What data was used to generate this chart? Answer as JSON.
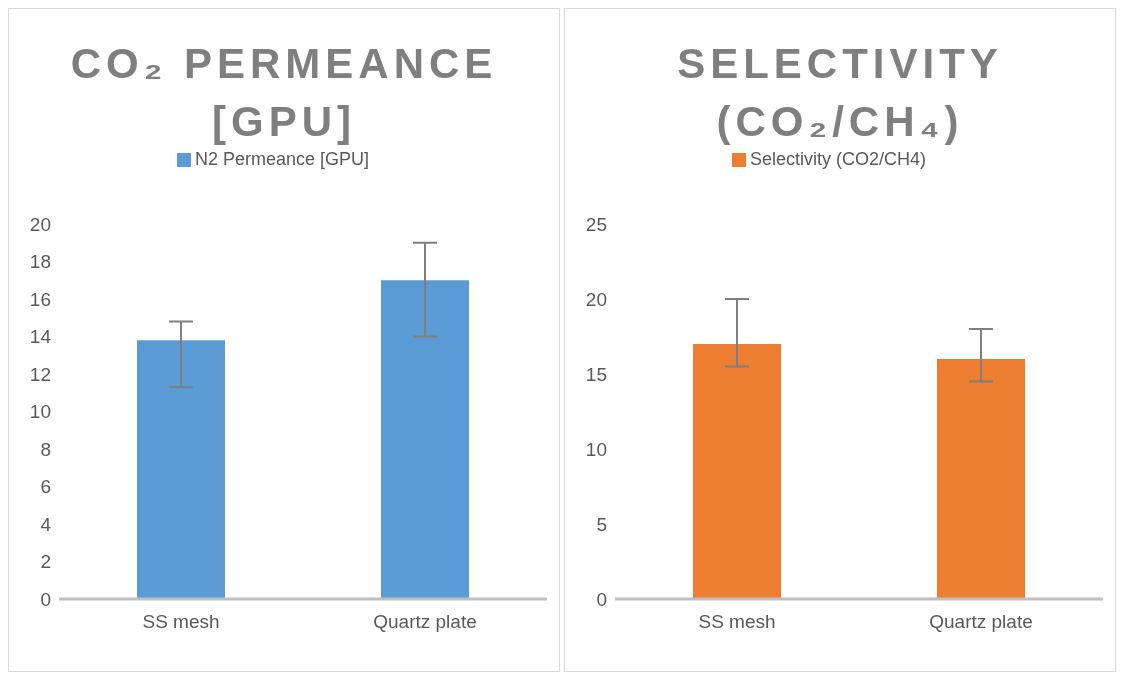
{
  "chart_data": [
    {
      "type": "bar",
      "title": "CO₂ PERMEANCE [GPU]",
      "categories": [
        "SS mesh",
        "Quartz plate"
      ],
      "series": [
        {
          "name": "N2 Permeance [GPU]",
          "color": "#5b9bd5",
          "values": [
            13.8,
            17.0
          ],
          "errors": [
            [
              11.3,
              14.8
            ],
            [
              14.0,
              19.0
            ]
          ]
        }
      ],
      "ylim": [
        0,
        20
      ],
      "yticks": [
        0,
        2,
        4,
        6,
        8,
        10,
        12,
        14,
        16,
        18,
        20
      ],
      "grid": false,
      "legend": "top"
    },
    {
      "type": "bar",
      "title": "SELECTIVITY (CO₂/CH₄)",
      "categories": [
        "SS mesh",
        "Quartz plate"
      ],
      "series": [
        {
          "name": "Selectivity (CO2/CH4)",
          "color": "#ed7d31",
          "values": [
            17.0,
            16.0
          ],
          "errors": [
            [
              15.5,
              20.0
            ],
            [
              14.5,
              18.0
            ]
          ]
        }
      ],
      "ylim": [
        0,
        25
      ],
      "yticks": [
        0,
        5,
        10,
        15,
        20,
        25
      ],
      "grid": false,
      "legend": "top"
    }
  ]
}
